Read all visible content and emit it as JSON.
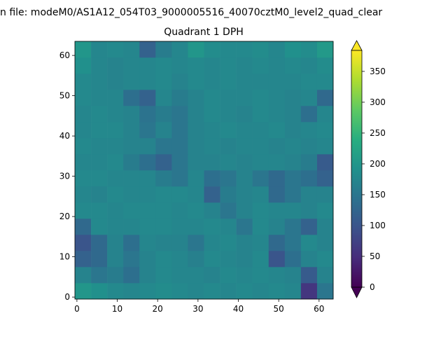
{
  "chart_data": {
    "type": "heatmap",
    "title": "n file: modeM0/AS1A12_054T03_9000005516_40070cztM0_level2_quad_clear",
    "subtitle": "Quadrant 1 DPH",
    "xbins": [
      -0.5,
      3.5,
      7.5,
      11.5,
      15.5,
      19.5,
      23.5,
      27.5,
      31.5,
      35.5,
      39.5,
      43.5,
      47.5,
      51.5,
      55.5,
      59.5,
      63.5
    ],
    "ybins": [
      -0.5,
      3.5,
      7.5,
      11.5,
      15.5,
      19.5,
      23.5,
      27.5,
      31.5,
      35.5,
      39.5,
      43.5,
      47.5,
      51.5,
      55.5,
      59.5,
      63.5
    ],
    "z": [
      [
        200,
        190,
        180,
        175,
        180,
        185,
        180,
        175,
        180,
        175,
        180,
        175,
        180,
        175,
        60,
        150
      ],
      [
        170,
        150,
        160,
        140,
        170,
        180,
        175,
        175,
        170,
        180,
        175,
        180,
        175,
        170,
        110,
        170
      ],
      [
        120,
        130,
        170,
        150,
        170,
        180,
        175,
        165,
        180,
        175,
        170,
        180,
        100,
        140,
        170,
        180
      ],
      [
        100,
        130,
        170,
        140,
        175,
        170,
        170,
        150,
        175,
        180,
        170,
        175,
        130,
        150,
        180,
        170
      ],
      [
        130,
        180,
        175,
        175,
        180,
        180,
        175,
        175,
        180,
        175,
        150,
        180,
        170,
        150,
        120,
        170
      ],
      [
        180,
        180,
        175,
        180,
        180,
        180,
        175,
        180,
        170,
        150,
        170,
        180,
        175,
        175,
        170,
        180
      ],
      [
        175,
        170,
        180,
        175,
        175,
        180,
        180,
        175,
        120,
        160,
        170,
        175,
        130,
        150,
        170,
        170
      ],
      [
        180,
        180,
        175,
        175,
        175,
        160,
        150,
        175,
        140,
        150,
        170,
        150,
        130,
        150,
        140,
        120
      ],
      [
        175,
        175,
        180,
        160,
        140,
        120,
        150,
        170,
        170,
        175,
        170,
        175,
        175,
        170,
        160,
        110
      ],
      [
        180,
        175,
        175,
        170,
        170,
        150,
        150,
        170,
        175,
        170,
        175,
        175,
        170,
        175,
        170,
        175
      ],
      [
        175,
        180,
        180,
        170,
        150,
        170,
        150,
        170,
        175,
        180,
        175,
        175,
        180,
        170,
        175,
        180
      ],
      [
        175,
        180,
        175,
        170,
        145,
        160,
        150,
        170,
        180,
        175,
        170,
        180,
        175,
        170,
        140,
        175
      ],
      [
        180,
        175,
        175,
        140,
        120,
        175,
        160,
        170,
        180,
        175,
        175,
        180,
        175,
        170,
        175,
        130
      ],
      [
        180,
        175,
        170,
        175,
        175,
        180,
        170,
        180,
        175,
        180,
        175,
        175,
        175,
        175,
        180,
        180
      ],
      [
        190,
        175,
        170,
        175,
        175,
        180,
        175,
        180,
        175,
        180,
        175,
        180,
        175,
        180,
        175,
        185
      ],
      [
        200,
        175,
        180,
        175,
        120,
        160,
        175,
        200,
        185,
        180,
        180,
        185,
        175,
        190,
        185,
        205
      ]
    ],
    "xlim": [
      -0.5,
      63.5
    ],
    "ylim": [
      -0.5,
      63.5
    ],
    "xticks": [
      0,
      10,
      20,
      30,
      40,
      50,
      60
    ],
    "yticks": [
      0,
      10,
      20,
      30,
      40,
      50,
      60
    ],
    "colormap": "viridis",
    "clim": [
      0,
      384
    ],
    "cticks": [
      0,
      50,
      100,
      150,
      200,
      250,
      300,
      350
    ]
  }
}
